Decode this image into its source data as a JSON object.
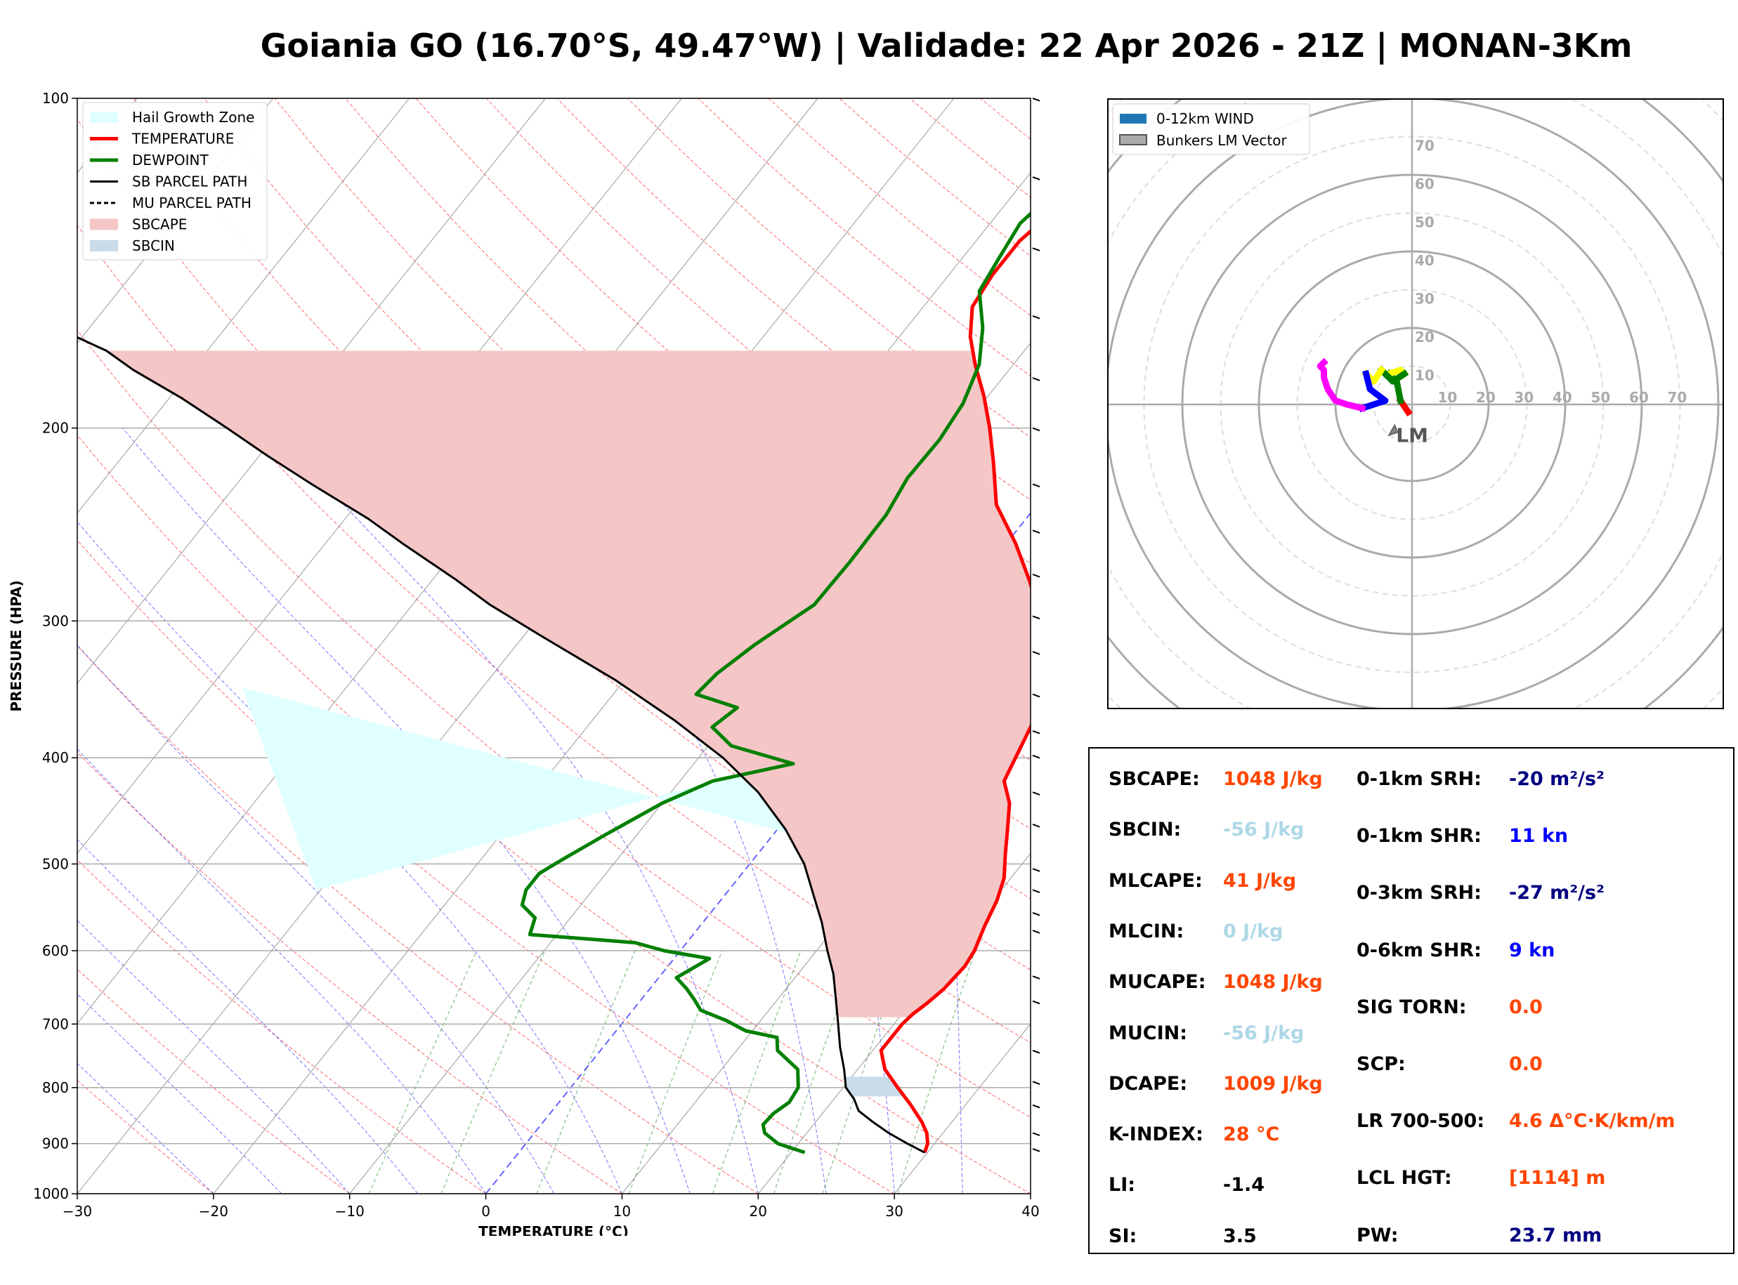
{
  "title": "Goiania GO (16.70°S, 49.47°W) | Validade: 22 Apr 2026 - 21Z | MONAN-3Km",
  "chart_data": [
    {
      "type": "line",
      "subtype": "skew-T log-P sounding",
      "xlabel": "TEMPERATURE (°C)",
      "ylabel": "PRESSURE (HPA)",
      "xlim": [
        -30,
        40
      ],
      "ylim": [
        1000,
        100
      ],
      "yscale": "log",
      "x_ticks": [
        "−30",
        "−20",
        "−10",
        "0",
        "10",
        "20",
        "30",
        "40"
      ],
      "y_ticks": [
        "1000",
        "900",
        "800",
        "700",
        "600",
        "500",
        "400",
        "300",
        "200",
        "100"
      ],
      "legend_position": "top-left",
      "legend": [
        "Hail Growth Zone",
        "TEMPERATURE",
        "DEWPOINT",
        "SB PARCEL PATH",
        "MU PARCEL PATH",
        "SBCAPE",
        "SBCIN"
      ],
      "colors": {
        "temperature": "#ff0000",
        "dewpoint": "#008000",
        "parcel": "#000000",
        "cape": "#f5c6c6",
        "cin": "#c8dcec",
        "hail": "#e0ffff"
      },
      "series": [
        {
          "name": "TEMPERATURE",
          "points": [
            [
              29.8,
              917
            ],
            [
              29.5,
              900
            ],
            [
              28.8,
              880
            ],
            [
              27.8,
              860
            ],
            [
              26,
              830
            ],
            [
              24,
              800
            ],
            [
              22,
              770
            ],
            [
              20.6,
              740
            ],
            [
              20.6,
              700
            ],
            [
              20.8,
              685
            ],
            [
              21.2,
              670
            ],
            [
              21.6,
              650
            ],
            [
              21.8,
              620
            ],
            [
              21.6,
              600
            ],
            [
              20.9,
              570
            ],
            [
              20.3,
              540
            ],
            [
              19.5,
              515
            ],
            [
              18.2,
              490
            ],
            [
              16.9,
              465
            ],
            [
              15.5,
              440
            ],
            [
              13.8,
              420
            ],
            [
              13.0,
              390
            ],
            [
              12.2,
              362
            ],
            [
              10.1,
              330
            ],
            [
              7.2,
              300
            ],
            [
              3.8,
              275
            ],
            [
              0.7,
              255
            ],
            [
              -3.0,
              235
            ],
            [
              -5.7,
              215
            ],
            [
              -8.0,
              200
            ],
            [
              -10.3,
              187
            ],
            [
              -12.8,
              175
            ],
            [
              -14.8,
              165
            ],
            [
              -16.4,
              155
            ],
            [
              -16.8,
              145
            ],
            [
              -16.8,
              135
            ],
            [
              -15.9,
              125
            ],
            [
              -14.4,
              115
            ],
            [
              -11.9,
              107
            ],
            [
              -9.9,
              100
            ]
          ]
        },
        {
          "name": "DEWPOINT",
          "points": [
            [
              21,
              917
            ],
            [
              18.5,
              900
            ],
            [
              16.9,
              880
            ],
            [
              16.3,
              865
            ],
            [
              16.4,
              845
            ],
            [
              16.9,
              825
            ],
            [
              16.7,
              800
            ],
            [
              15.6,
              770
            ],
            [
              13,
              740
            ],
            [
              12.2,
              720
            ],
            [
              9.5,
              710
            ],
            [
              7.5,
              695
            ],
            [
              5,
              680
            ],
            [
              3.9,
              665
            ],
            [
              2.7,
              650
            ],
            [
              1.3,
              635
            ],
            [
              2.6,
              610
            ],
            [
              -1.2,
              600
            ],
            [
              -3.8,
              590
            ],
            [
              -7.8,
              585
            ],
            [
              -12,
              580
            ],
            [
              -12.6,
              560
            ],
            [
              -14.3,
              545
            ],
            [
              -14.9,
              528
            ],
            [
              -14.9,
              510
            ],
            [
              -14.0,
              495
            ],
            [
              -12.3,
              470
            ],
            [
              -10.0,
              440
            ],
            [
              -7.6,
              420
            ],
            [
              -2.7,
              405
            ],
            [
              -8.3,
              390
            ],
            [
              -10.8,
              375
            ],
            [
              -10.1,
              360
            ],
            [
              -13.9,
              350
            ],
            [
              -13.6,
              335
            ],
            [
              -12.5,
              315
            ],
            [
              -10.5,
              290
            ],
            [
              -10.4,
              265
            ],
            [
              -10.5,
              240
            ],
            [
              -11.1,
              222
            ],
            [
              -11.0,
              205
            ],
            [
              -11.4,
              190
            ],
            [
              -12.5,
              175
            ],
            [
              -14.4,
              162
            ],
            [
              -16.8,
              150
            ],
            [
              -17.3,
              140
            ],
            [
              -17.8,
              130
            ],
            [
              -16.5,
              115
            ],
            [
              -13.1,
              100
            ]
          ]
        },
        {
          "name": "SB PARCEL PATH",
          "points": [
            [
              29.8,
              917
            ],
            [
              28,
              900
            ],
            [
              26,
              880
            ],
            [
              24.2,
              860
            ],
            [
              22.5,
              840
            ],
            [
              21.5,
              820
            ],
            [
              20.2,
              800
            ],
            [
              19,
              770
            ],
            [
              17.4,
              735
            ],
            [
              15.9,
              700
            ],
            [
              14.3,
              665
            ],
            [
              12.6,
              630
            ],
            [
              10.8,
              600
            ],
            [
              8.7,
              565
            ],
            [
              6.6,
              535
            ],
            [
              4.0,
              500
            ],
            [
              0.6,
              465
            ],
            [
              -3.6,
              430
            ],
            [
              -8.2,
              400
            ],
            [
              -13.9,
              370
            ],
            [
              -20.6,
              340
            ],
            [
              -28.6,
              310
            ],
            [
              -34.3,
              290
            ],
            [
              -38.3,
              275
            ],
            [
              -44.3,
              255
            ],
            [
              -48.3,
              242
            ],
            [
              -54.5,
              225
            ],
            [
              -59.4,
              212
            ],
            [
              -64,
              200
            ],
            [
              -69,
              188
            ],
            [
              -74.3,
              177
            ],
            [
              -77.4,
              170
            ],
            [
              -80.5,
              165
            ],
            [
              -83,
              158
            ],
            [
              -86.7,
              150
            ],
            [
              -89.9,
              143
            ],
            [
              -94.5,
              135
            ],
            [
              -97.6,
              125
            ],
            [
              -100.5,
              115
            ],
            [
              -103,
              105
            ],
            [
              -103.8,
              100
            ]
          ]
        }
      ],
      "annotations": [
        "SBCAPE shaded between parcel and temperature from ~690 hPa to ~170 hPa",
        "SBCIN shaded near 800 hPa",
        "Hail Growth Zone shaded ~550–360 hPa"
      ]
    },
    {
      "type": "scatter",
      "subtype": "hodograph",
      "legend_position": "top-left",
      "legend": [
        "0-12km WIND",
        "Bunkers LM Vector"
      ],
      "ring_labels": [
        "10",
        "20",
        "30",
        "40",
        "50",
        "60",
        "70"
      ],
      "label": "LM",
      "segments": [
        {
          "color": "#ff0000",
          "points": [
            [
              -1,
              -2
            ],
            [
              -3,
              1
            ]
          ]
        },
        {
          "color": "#008000",
          "points": [
            [
              -3,
              1
            ],
            [
              -4,
              6
            ],
            [
              -6,
              8
            ]
          ]
        },
        {
          "color": "#ffff00",
          "points": [
            [
              -6,
              8
            ],
            [
              -3,
              9
            ],
            [
              -2,
              8
            ]
          ]
        },
        {
          "color": "#008000",
          "points": [
            [
              -2,
              8
            ],
            [
              -5,
              6
            ],
            [
              -8,
              9
            ]
          ]
        },
        {
          "color": "#ffff00",
          "points": [
            [
              -8,
              9
            ],
            [
              -10,
              6
            ],
            [
              -12,
              8
            ]
          ]
        },
        {
          "color": "#0000ff",
          "points": [
            [
              -12,
              8
            ],
            [
              -11,
              4
            ],
            [
              -7,
              1
            ],
            [
              -10,
              0
            ],
            [
              -13,
              -1
            ]
          ]
        },
        {
          "color": "#ff00ff",
          "points": [
            [
              -13,
              -1
            ],
            [
              -17,
              0
            ],
            [
              -20,
              1
            ],
            [
              -22,
              4
            ],
            [
              -23,
              7
            ],
            [
              -23,
              9
            ],
            [
              -24,
              10
            ],
            [
              -23,
              11
            ]
          ]
        }
      ],
      "bunkers_lm": [
        [
          -6,
          -8
        ]
      ]
    }
  ],
  "wind_barbs": [
    {
      "p": 100,
      "kn": 15
    },
    {
      "p": 118,
      "kn": 20
    },
    {
      "p": 137,
      "kn": 15
    },
    {
      "p": 158,
      "kn": 15
    },
    {
      "p": 180,
      "kn": 15
    },
    {
      "p": 200,
      "kn": 20
    },
    {
      "p": 225,
      "kn": 20
    },
    {
      "p": 248,
      "kn": 20
    },
    {
      "p": 272,
      "kn": 20
    },
    {
      "p": 297,
      "kn": 20
    },
    {
      "p": 320,
      "kn": 20
    },
    {
      "p": 350,
      "kn": 10
    },
    {
      "p": 378,
      "kn": 5
    },
    {
      "p": 398,
      "kn": 10
    },
    {
      "p": 430,
      "kn": 10
    },
    {
      "p": 460,
      "kn": 10
    },
    {
      "p": 505,
      "kn": 10
    },
    {
      "p": 528,
      "kn": 10
    },
    {
      "p": 554,
      "kn": 10
    },
    {
      "p": 575,
      "kn": 10
    },
    {
      "p": 633,
      "kn": 10
    },
    {
      "p": 667,
      "kn": 5
    },
    {
      "p": 740,
      "kn": 5
    },
    {
      "p": 790,
      "kn": 5
    },
    {
      "p": 830,
      "kn": 10
    },
    {
      "p": 880,
      "kn": 5
    },
    {
      "p": 910,
      "kn": 5
    }
  ],
  "stats": {
    "col1": [
      {
        "label": "SBCAPE:",
        "value": "1048 J/kg",
        "color": "#ff4500"
      },
      {
        "label": "SBCIN:",
        "value": "-56 J/kg",
        "color": "#add8e6"
      },
      {
        "label": "MLCAPE:",
        "value": "41 J/kg",
        "color": "#ff4500"
      },
      {
        "label": "MLCIN:",
        "value": "0 J/kg",
        "color": "#add8e6"
      },
      {
        "label": "MUCAPE:",
        "value": "1048 J/kg",
        "color": "#ff4500"
      },
      {
        "label": "MUCIN:",
        "value": "-56 J/kg",
        "color": "#add8e6"
      },
      {
        "label": "DCAPE:",
        "value": "1009 J/kg",
        "color": "#ff4500"
      },
      {
        "label": "K-INDEX:",
        "value": "28 °C",
        "color": "#ff4500"
      },
      {
        "label": "LI:",
        "value": "-1.4",
        "color": "#000000"
      },
      {
        "label": "SI:",
        "value": "3.5",
        "color": "#000000"
      }
    ],
    "col2": [
      {
        "label": "0-1km SRH:",
        "value": "-20 m²/s²",
        "color": "#000080"
      },
      {
        "label": "0-1km SHR:",
        "value": "11 kn",
        "color": "#0000ff"
      },
      {
        "label": "0-3km SRH:",
        "value": "-27 m²/s²",
        "color": "#000080"
      },
      {
        "label": "0-6km SHR:",
        "value": "9 kn",
        "color": "#0000ff"
      },
      {
        "label": "SIG TORN:",
        "value": "0.0",
        "color": "#ff4500"
      },
      {
        "label": "SCP:",
        "value": "0.0",
        "color": "#ff4500"
      },
      {
        "label": "LR 700-500:",
        "value": "4.6 Δ°C·K/km/m",
        "color": "#ff4500"
      },
      {
        "label": "LCL HGT:",
        "value": "[1114] m",
        "color": "#ff4500"
      },
      {
        "label": "PW:",
        "value": "23.7 mm",
        "color": "#000080"
      }
    ]
  }
}
